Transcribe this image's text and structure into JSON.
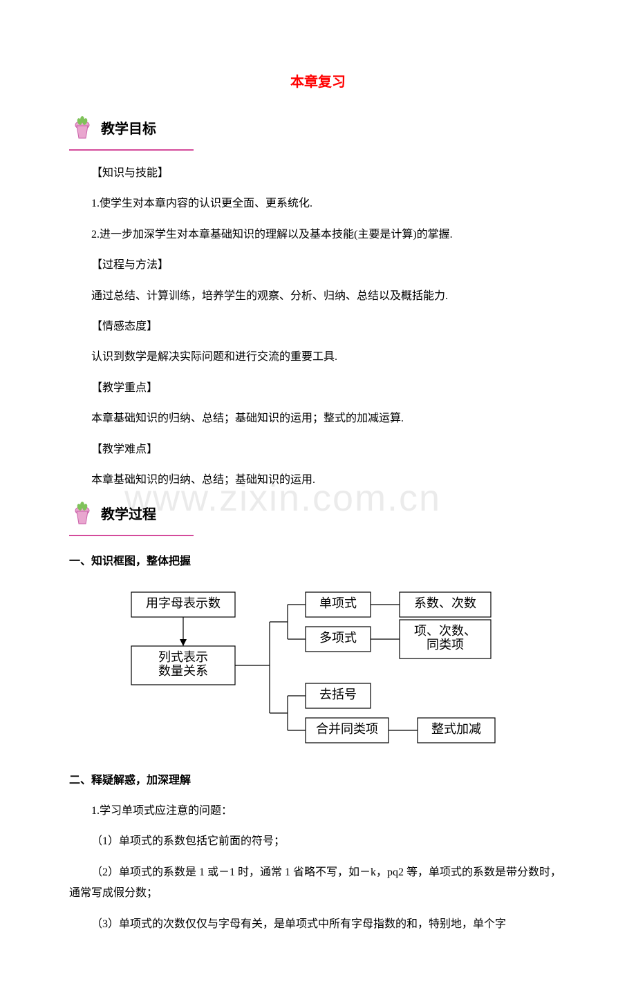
{
  "title": "本章复习",
  "sections": {
    "goals_label": "教学目标",
    "process_label": "教学过程"
  },
  "goals": {
    "h1": "【知识与技能】",
    "p1": "1.使学生对本章内容的认识更全面、更系统化.",
    "p2": "2.进一步加深学生对本章基础知识的理解以及基本技能(主要是计算)的掌握.",
    "h2": "【过程与方法】",
    "p3": "通过总结、计算训练，培养学生的观察、分析、归纳、总结以及概括能力.",
    "h3": "【情感态度】",
    "p4": "认识到数学是解决实际问题和进行交流的重要工具.",
    "h4": "【教学重点】",
    "p5": "本章基础知识的归纳、总结；基础知识的运用；整式的加减运算.",
    "h5": "【教学难点】",
    "p6": "本章基础知识的归纳、总结；基础知识的运用."
  },
  "watermark": "www.zixin.com.cn",
  "process": {
    "sub1": "一、知识框图，整体把握",
    "sub2": "二、释疑解惑，加深理解",
    "p1": "1.学习单项式应注意的问题：",
    "p2": "（1）单项式的系数包括它前面的符号；",
    "p3": "（2）单项式的系数是 1 或－1 时，通常 1 省略不写，如－k，pq2 等，单项式的系数是带分数时，通常写成假分数；",
    "p4": "（3）单项式的次数仅仅与字母有关，是单项式中所有字母指数的和，特别地，单个字"
  },
  "diagram": {
    "nodes": {
      "n1": "用字母表示数",
      "n2": "列式表示\n数量关系",
      "n3": "单项式",
      "n4": "多项式",
      "n5": "去括号",
      "n6": "合并同类项",
      "n7": "系数、次数",
      "n8": "项、次数、\n同类项",
      "n9": "整式加减"
    },
    "style": {
      "stroke": "#000000",
      "fill": "#ffffff",
      "font_size": 18,
      "box_border_width": 1.2,
      "line_width": 1.2
    }
  },
  "colors": {
    "title": "#ff0000",
    "accent": "#d44b9b",
    "icon_body": "#e9a6cf",
    "icon_shadow": "#c95fa8",
    "icon_leaf": "#7fc25a",
    "text": "#000000",
    "watermark": "rgba(0,0,0,0.08)",
    "background": "#ffffff"
  }
}
